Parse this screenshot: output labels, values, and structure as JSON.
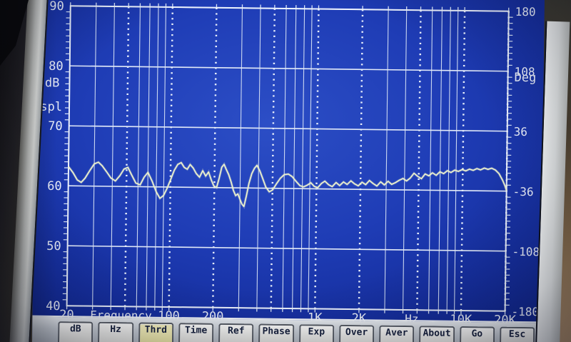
{
  "screen": {
    "y_axis": {
      "unit_top": "dB",
      "unit_bottom": "spl",
      "ticks": [
        {
          "label": "90",
          "db": 90
        },
        {
          "label": "80",
          "db": 80
        },
        {
          "label": "70",
          "db": 70
        },
        {
          "label": "60",
          "db": 60
        },
        {
          "label": "50",
          "db": 50
        },
        {
          "label": "40",
          "db": 40
        }
      ]
    },
    "phase_axis": {
      "unit": "Deg",
      "ticks": [
        {
          "label": "180",
          "deg": 180
        },
        {
          "label": "108",
          "deg": 108
        },
        {
          "label": "36",
          "deg": 36
        },
        {
          "label": "-36",
          "deg": -36
        },
        {
          "label": "-108",
          "deg": -108
        },
        {
          "label": "-180",
          "deg": -180
        }
      ]
    },
    "freq_axis": {
      "label": "Frequency",
      "unit": "Hz",
      "ticks": [
        {
          "label": "20",
          "hz": 20
        },
        {
          "label": "100",
          "hz": 100
        },
        {
          "label": "200",
          "hz": 200
        },
        {
          "label": "1K",
          "hz": 1000
        },
        {
          "label": "2K",
          "hz": 2000
        },
        {
          "label": "10K",
          "hz": 10000
        },
        {
          "label": "20K",
          "hz": 20000
        }
      ]
    },
    "colors": {
      "screen_blue": "#1e3cb4",
      "grid": "#d9e4f6",
      "trace": "#edf2cd",
      "label": "#e9eef9",
      "button_face": "#e9e9e6",
      "button_active": "#efeab2",
      "button_text": "#16203c"
    }
  },
  "toolbar": {
    "buttons": [
      {
        "label": "dB",
        "active": false
      },
      {
        "label": "Hz",
        "active": false
      },
      {
        "label": "Thrd",
        "active": true
      },
      {
        "label": "Time",
        "active": false
      },
      {
        "label": "Ref",
        "active": false
      },
      {
        "label": "Phase",
        "active": false
      },
      {
        "label": "Exp",
        "active": false
      },
      {
        "label": "Over",
        "active": false
      },
      {
        "label": "Aver",
        "active": false
      },
      {
        "label": "About",
        "active": false
      },
      {
        "label": "Go",
        "active": false
      },
      {
        "label": "Esc",
        "active": false
      }
    ]
  },
  "chart_data": {
    "type": "line",
    "x_scale": "log",
    "x_range_hz": [
      20,
      20000
    ],
    "x_axis": {
      "label": "Frequency",
      "unit": "Hz",
      "labeled_ticks": [
        "20",
        "100",
        "200",
        "1K",
        "2K",
        "10K",
        "20K"
      ]
    },
    "y_left": {
      "label": "dB spl",
      "range": [
        40,
        90
      ],
      "major_ticks": [
        90,
        80,
        70,
        60,
        50,
        40
      ]
    },
    "y_right": {
      "label": "Deg",
      "range": [
        -180,
        180
      ],
      "major_ticks": [
        180,
        108,
        36,
        -36,
        -108,
        -180
      ]
    },
    "grid": {
      "vertical": "log lines 20Hz-20kHz",
      "dotted_emphasis_hz": [
        50,
        100,
        200,
        500,
        1000,
        2000,
        5000,
        10000,
        20000
      ]
    },
    "series": [
      {
        "name": "dB spl",
        "points": [
          [
            20,
            63.2
          ],
          [
            21.5,
            62.2
          ],
          [
            23,
            61
          ],
          [
            24.5,
            60.6
          ],
          [
            26,
            61.3
          ],
          [
            28,
            62.6
          ],
          [
            30,
            63.7
          ],
          [
            32,
            64
          ],
          [
            34,
            63.4
          ],
          [
            36.5,
            62.4
          ],
          [
            39,
            61.4
          ],
          [
            42,
            60.9
          ],
          [
            45,
            61.8
          ],
          [
            48,
            62.9
          ],
          [
            51,
            63.2
          ],
          [
            54,
            62
          ],
          [
            58,
            60.6
          ],
          [
            62,
            60.3
          ],
          [
            66,
            61.6
          ],
          [
            70,
            62.4
          ],
          [
            75,
            60.9
          ],
          [
            80,
            59.2
          ],
          [
            85,
            58.1
          ],
          [
            90,
            58.6
          ],
          [
            95,
            59.8
          ],
          [
            100,
            61.2
          ],
          [
            106,
            62.8
          ],
          [
            112,
            63.8
          ],
          [
            118,
            64.1
          ],
          [
            124,
            63.3
          ],
          [
            130,
            63
          ],
          [
            136,
            63.8
          ],
          [
            143,
            63.2
          ],
          [
            150,
            62.3
          ],
          [
            158,
            61.7
          ],
          [
            166,
            62.8
          ],
          [
            174,
            61.9
          ],
          [
            182,
            62.6
          ],
          [
            190,
            61.3
          ],
          [
            198,
            60.3
          ],
          [
            207,
            60
          ],
          [
            215,
            61.5
          ],
          [
            224,
            63.4
          ],
          [
            232,
            63.9
          ],
          [
            240,
            63.1
          ],
          [
            250,
            62.2
          ],
          [
            260,
            61
          ],
          [
            270,
            59.6
          ],
          [
            280,
            58.7
          ],
          [
            290,
            59
          ],
          [
            300,
            58.1
          ],
          [
            310,
            57.3
          ],
          [
            320,
            56.9
          ],
          [
            332,
            58.7
          ],
          [
            345,
            60.8
          ],
          [
            360,
            62.4
          ],
          [
            375,
            63.3
          ],
          [
            390,
            63.8
          ],
          [
            408,
            62.9
          ],
          [
            428,
            61.6
          ],
          [
            450,
            60.2
          ],
          [
            475,
            59.4
          ],
          [
            500,
            59.7
          ],
          [
            530,
            60.7
          ],
          [
            565,
            61.7
          ],
          [
            600,
            62.3
          ],
          [
            640,
            62.4
          ],
          [
            680,
            62
          ],
          [
            725,
            61.2
          ],
          [
            770,
            60.5
          ],
          [
            815,
            60.3
          ],
          [
            865,
            60.6
          ],
          [
            915,
            61
          ],
          [
            965,
            60.4
          ],
          [
            1020,
            60.2
          ],
          [
            1080,
            60.9
          ],
          [
            1140,
            61.3
          ],
          [
            1210,
            60.7
          ],
          [
            1280,
            60.4
          ],
          [
            1360,
            61.1
          ],
          [
            1440,
            60.6
          ],
          [
            1530,
            61.2
          ],
          [
            1620,
            60.8
          ],
          [
            1720,
            61.4
          ],
          [
            1820,
            60.9
          ],
          [
            1930,
            60.6
          ],
          [
            2050,
            61.2
          ],
          [
            2170,
            60.8
          ],
          [
            2300,
            61.5
          ],
          [
            2440,
            61
          ],
          [
            2590,
            60.6
          ],
          [
            2750,
            61.3
          ],
          [
            2910,
            60.8
          ],
          [
            3090,
            61.4
          ],
          [
            3270,
            60.9
          ],
          [
            3470,
            61.2
          ],
          [
            3680,
            61.6
          ],
          [
            3900,
            61.9
          ],
          [
            4130,
            61.5
          ],
          [
            4380,
            62
          ],
          [
            4640,
            62.8
          ],
          [
            4920,
            62.3
          ],
          [
            5220,
            61.9
          ],
          [
            5530,
            62.7
          ],
          [
            5860,
            62.4
          ],
          [
            6210,
            62.9
          ],
          [
            6590,
            62.5
          ],
          [
            6980,
            63.1
          ],
          [
            7400,
            62.8
          ],
          [
            7840,
            63.3
          ],
          [
            8310,
            63
          ],
          [
            8810,
            63.4
          ],
          [
            9340,
            63.2
          ],
          [
            9900,
            63.5
          ],
          [
            10490,
            63.3
          ],
          [
            11120,
            63.6
          ],
          [
            11790,
            63.4
          ],
          [
            12490,
            63.7
          ],
          [
            13240,
            63.5
          ],
          [
            14040,
            63.8
          ],
          [
            14880,
            63.6
          ],
          [
            15770,
            63.8
          ],
          [
            16720,
            63.5
          ],
          [
            17720,
            62.9
          ],
          [
            18780,
            61.8
          ],
          [
            19500,
            60.9
          ],
          [
            20000,
            60.1
          ]
        ]
      }
    ]
  }
}
